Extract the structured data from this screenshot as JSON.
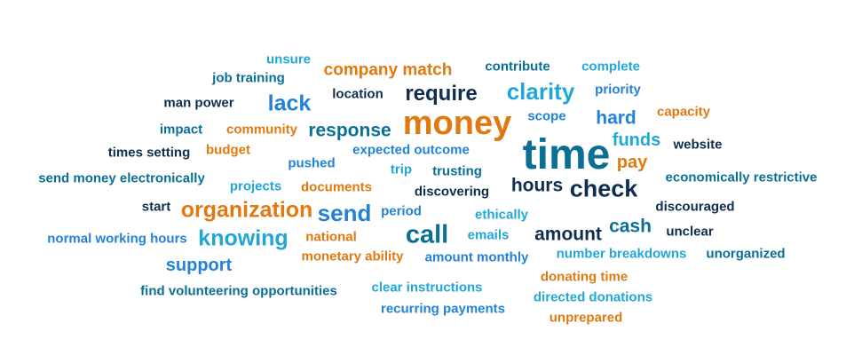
{
  "colors": {
    "orange": "#e07a10",
    "teal": "#0a6f95",
    "cyan": "#21a6d8",
    "blue": "#2282d8",
    "navy": "#0f2d4e"
  },
  "words": [
    {
      "text": "unsure",
      "color": "cyan"
    },
    {
      "text": "company match",
      "color": "orange"
    },
    {
      "text": "contribute",
      "color": "teal"
    },
    {
      "text": "complete",
      "color": "cyan"
    },
    {
      "text": "job training",
      "color": "teal"
    },
    {
      "text": "require",
      "color": "navy"
    },
    {
      "text": "clarity",
      "color": "cyan"
    },
    {
      "text": "priority",
      "color": "blue"
    },
    {
      "text": "location",
      "color": "navy"
    },
    {
      "text": "man power",
      "color": "navy"
    },
    {
      "text": "lack",
      "color": "blue"
    },
    {
      "text": "money",
      "color": "orange"
    },
    {
      "text": "scope",
      "color": "blue"
    },
    {
      "text": "hard",
      "color": "blue"
    },
    {
      "text": "capacity",
      "color": "orange"
    },
    {
      "text": "impact",
      "color": "teal"
    },
    {
      "text": "community",
      "color": "orange"
    },
    {
      "text": "response",
      "color": "teal"
    },
    {
      "text": "funds",
      "color": "cyan"
    },
    {
      "text": "website",
      "color": "navy"
    },
    {
      "text": "times setting",
      "color": "navy"
    },
    {
      "text": "budget",
      "color": "orange"
    },
    {
      "text": "expected outcome",
      "color": "blue"
    },
    {
      "text": "time",
      "color": "teal"
    },
    {
      "text": "pushed",
      "color": "blue"
    },
    {
      "text": "pay",
      "color": "orange"
    },
    {
      "text": "trip",
      "color": "cyan"
    },
    {
      "text": "trusting",
      "color": "teal"
    },
    {
      "text": "send money electronically",
      "color": "teal"
    },
    {
      "text": "economically restrictive",
      "color": "teal"
    },
    {
      "text": "projects",
      "color": "cyan"
    },
    {
      "text": "documents",
      "color": "orange"
    },
    {
      "text": "discovering",
      "color": "navy"
    },
    {
      "text": "hours",
      "color": "navy"
    },
    {
      "text": "check",
      "color": "navy"
    },
    {
      "text": "start",
      "color": "navy"
    },
    {
      "text": "organization",
      "color": "orange"
    },
    {
      "text": "send",
      "color": "blue"
    },
    {
      "text": "period",
      "color": "blue"
    },
    {
      "text": "ethically",
      "color": "cyan"
    },
    {
      "text": "discouraged",
      "color": "navy"
    },
    {
      "text": "cash",
      "color": "teal"
    },
    {
      "text": "normal working hours",
      "color": "blue"
    },
    {
      "text": "knowing",
      "color": "cyan"
    },
    {
      "text": "national",
      "color": "orange"
    },
    {
      "text": "call",
      "color": "teal"
    },
    {
      "text": "emails",
      "color": "cyan"
    },
    {
      "text": "amount",
      "color": "navy"
    },
    {
      "text": "unclear",
      "color": "navy"
    },
    {
      "text": "monetary ability",
      "color": "orange"
    },
    {
      "text": "amount monthly",
      "color": "blue"
    },
    {
      "text": "number breakdowns",
      "color": "cyan"
    },
    {
      "text": "unorganized",
      "color": "teal"
    },
    {
      "text": "support",
      "color": "blue"
    },
    {
      "text": "donating time",
      "color": "orange"
    },
    {
      "text": "find volunteering opportunities",
      "color": "teal"
    },
    {
      "text": "clear instructions",
      "color": "cyan"
    },
    {
      "text": "directed donations",
      "color": "cyan"
    },
    {
      "text": "recurring payments",
      "color": "blue"
    },
    {
      "text": "unprepared",
      "color": "orange"
    }
  ]
}
